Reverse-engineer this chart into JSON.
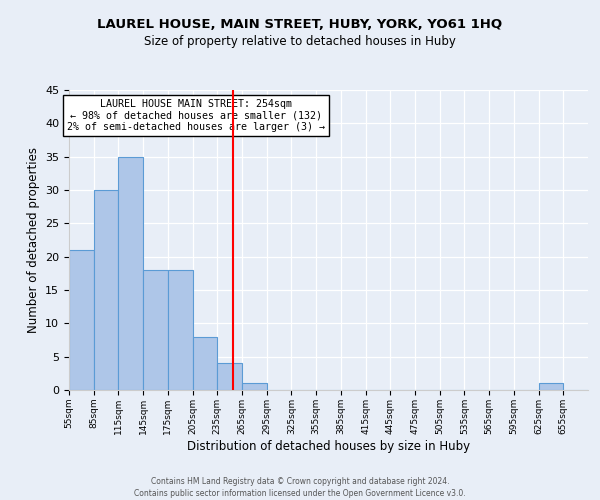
{
  "title": "LAUREL HOUSE, MAIN STREET, HUBY, YORK, YO61 1HQ",
  "subtitle": "Size of property relative to detached houses in Huby",
  "xlabel": "Distribution of detached houses by size in Huby",
  "ylabel": "Number of detached properties",
  "bin_edges": [
    55,
    85,
    115,
    145,
    175,
    205,
    235,
    265,
    295,
    325,
    355,
    385,
    415,
    445,
    475,
    505,
    535,
    565,
    595,
    625,
    655,
    685
  ],
  "counts": [
    21,
    30,
    35,
    18,
    18,
    8,
    4,
    1,
    0,
    0,
    0,
    0,
    0,
    0,
    0,
    0,
    0,
    0,
    0,
    1,
    0
  ],
  "bar_color": "#aec6e8",
  "bar_edge_color": "#5b9bd5",
  "vline_x": 254,
  "vline_color": "red",
  "ylim": [
    0,
    45
  ],
  "yticks": [
    0,
    5,
    10,
    15,
    20,
    25,
    30,
    35,
    40,
    45
  ],
  "annotation_text": "LAUREL HOUSE MAIN STREET: 254sqm\n← 98% of detached houses are smaller (132)\n2% of semi-detached houses are larger (3) →",
  "annotation_box_color": "white",
  "annotation_box_edge": "black",
  "bg_color": "#e8eef7",
  "footer_text": "Contains HM Land Registry data © Crown copyright and database right 2024.\nContains public sector information licensed under the Open Government Licence v3.0.",
  "tick_labels": [
    "55sqm",
    "85sqm",
    "115sqm",
    "145sqm",
    "175sqm",
    "205sqm",
    "235sqm",
    "265sqm",
    "295sqm",
    "325sqm",
    "355sqm",
    "385sqm",
    "415sqm",
    "445sqm",
    "475sqm",
    "505sqm",
    "535sqm",
    "565sqm",
    "595sqm",
    "625sqm",
    "655sqm"
  ]
}
